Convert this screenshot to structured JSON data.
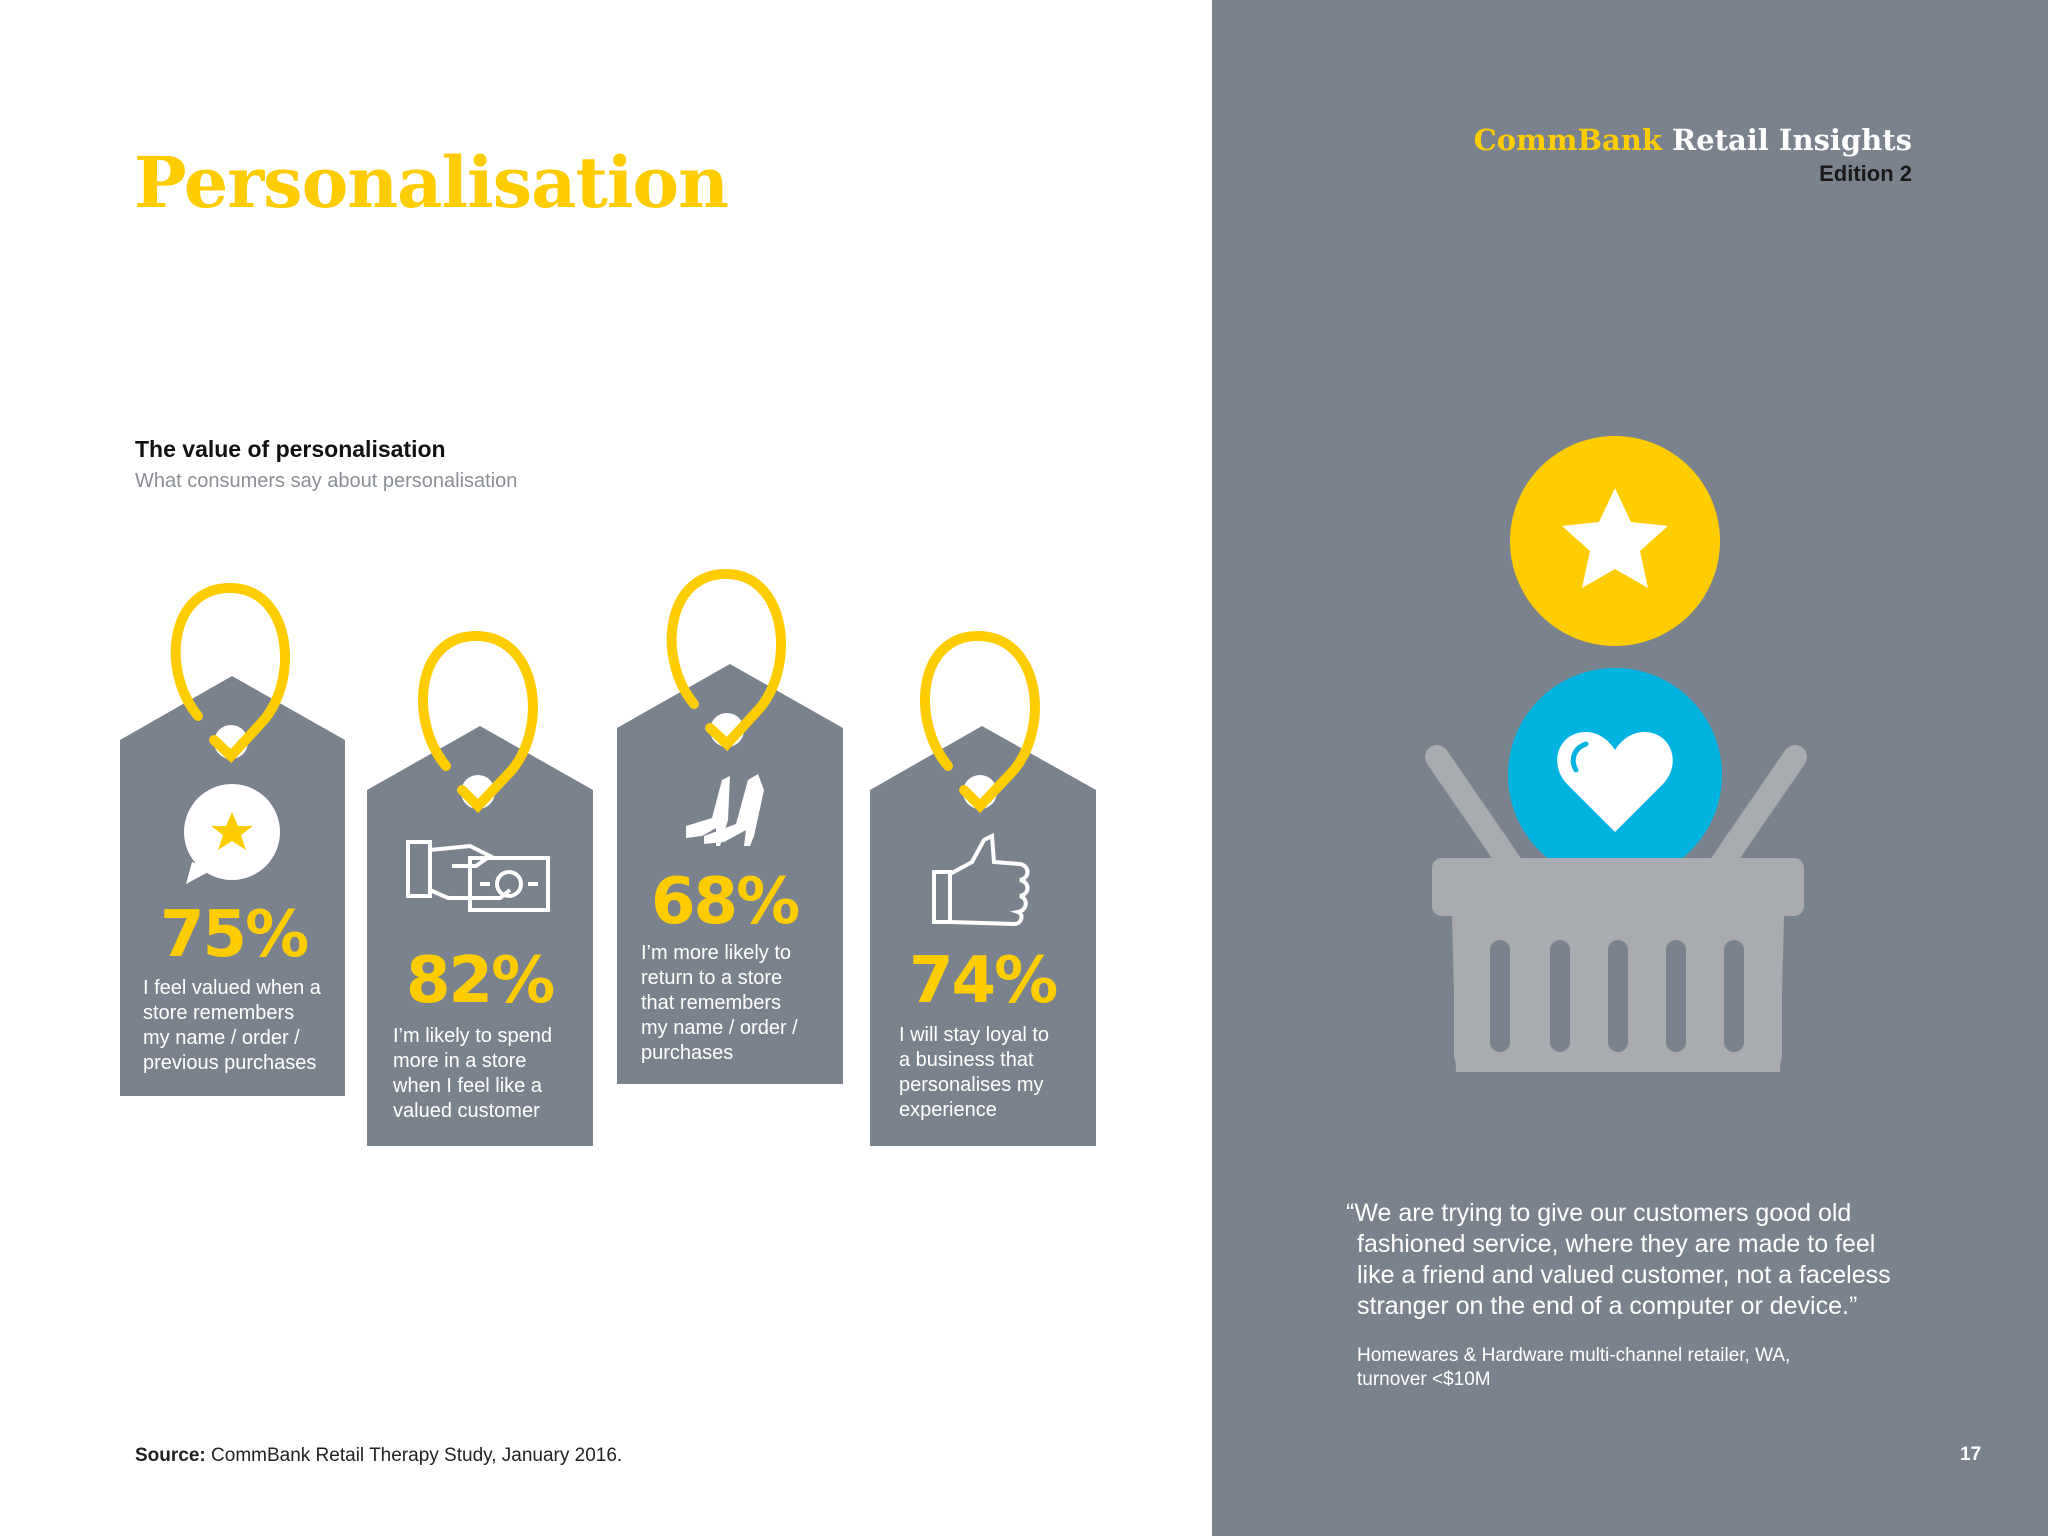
{
  "page": {
    "title": "Personalisation",
    "number": "17"
  },
  "brand": {
    "name_part1": "CommBank",
    "name_part2": "Retail Insights",
    "edition": "Edition 2"
  },
  "section": {
    "heading": "The value of personalisation",
    "subheading": "What consumers say about personalisation"
  },
  "tags": [
    {
      "percent": "75%",
      "text_lines": [
        "I feel valued when a",
        "store remembers",
        "my name / order /",
        "previous purchases"
      ],
      "icon": "speech-star-icon"
    },
    {
      "percent": "82%",
      "text_lines": [
        "I’m likely to spend",
        "more in a store",
        "when I feel like a",
        "valued customer"
      ],
      "icon": "hand-cash-icon"
    },
    {
      "percent": "68%",
      "text_lines": [
        "I’m more likely to",
        "return to a store",
        "that remembers",
        "my name / order /",
        "purchases"
      ],
      "icon": "high-heels-icon"
    },
    {
      "percent": "74%",
      "text_lines": [
        "I will stay loyal to",
        "a business that",
        "personalises my",
        "experience"
      ],
      "icon": "thumbs-up-icon"
    }
  ],
  "quote": {
    "lines": [
      "“We are trying to give our customers good old",
      "fashioned service, where they are made to feel",
      "like a friend and valued customer, not a faceless",
      "stranger on the end of a computer or device.”"
    ],
    "attribution_lines": [
      "Homewares & Hardware multi-channel retailer, WA,",
      "turnover <$10M"
    ]
  },
  "source": {
    "label": "Source:",
    "text": " CommBank Retail Therapy Study, January 2016."
  },
  "illustration": {
    "icons": [
      "star-badge-icon",
      "heart-badge-icon",
      "shopping-basket-icon"
    ]
  },
  "colors": {
    "yellow": "#ffcc00",
    "tag_grey": "#7a838d",
    "panel_grey": "#7a838d",
    "blue": "#00b3e0",
    "basket_grey": "#a8abb0"
  }
}
